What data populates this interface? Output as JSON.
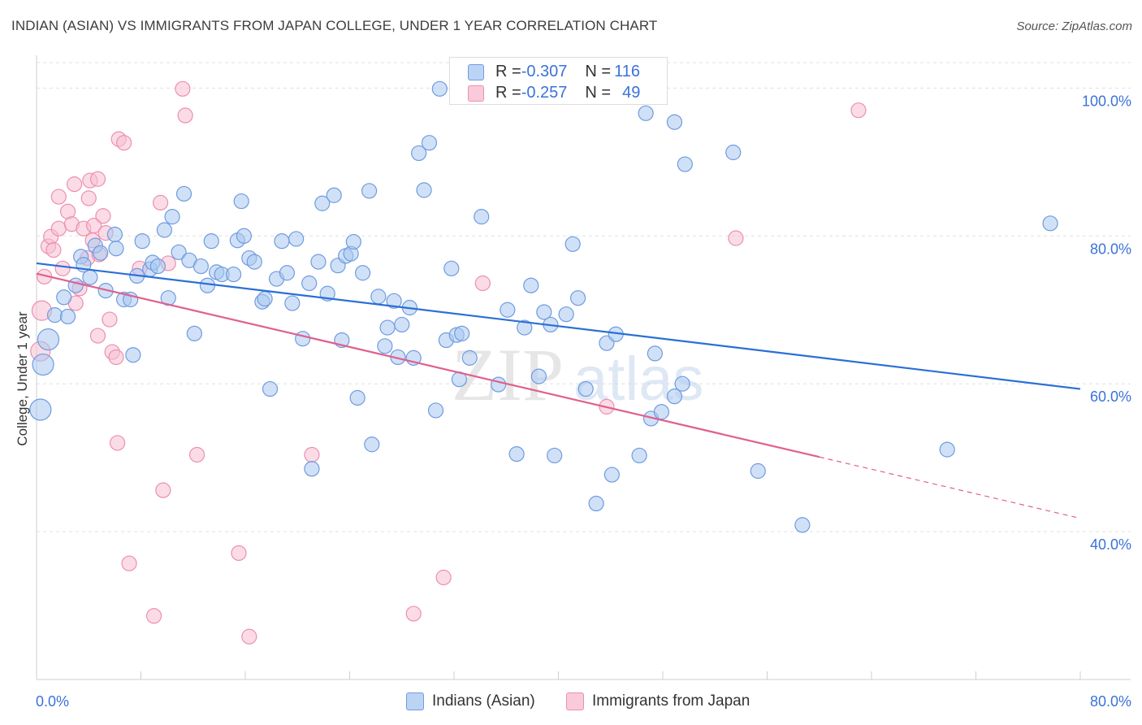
{
  "title": "INDIAN (ASIAN) VS IMMIGRANTS FROM JAPAN COLLEGE, UNDER 1 YEAR CORRELATION CHART",
  "source": "Source: ZipAtlas.com",
  "watermark": {
    "zip": "ZIP",
    "atlas": "atlas"
  },
  "colors": {
    "blue_fill": "#a9c8f0",
    "blue_stroke": "#6f9be0",
    "blue_line": "#2a6fd6",
    "pink_fill": "#f7bfd1",
    "pink_stroke": "#ec8fae",
    "pink_line": "#e0608e",
    "axis_label": "#3b72d9",
    "grid": "#e0e0e0"
  },
  "stats": {
    "row1": {
      "r_label": "R = ",
      "r_value": "-0.307",
      "n_label": "N = ",
      "n_value": "116"
    },
    "row2": {
      "r_label": "R = ",
      "r_value": "-0.257",
      "n_label": "N = ",
      "n_value": "49"
    }
  },
  "legend": {
    "series1": "Indians (Asian)",
    "series2": "Immigrants from Japan"
  },
  "chart_data": {
    "type": "scatter",
    "title": "INDIAN (ASIAN) VS IMMIGRANTS FROM JAPAN COLLEGE, UNDER 1 YEAR CORRELATION CHART",
    "xlabel": "",
    "ylabel": "College, Under 1 year",
    "xlim": [
      0,
      80
    ],
    "ylim": [
      20,
      104
    ],
    "x_tick_labels": [
      "0.0%",
      "80.0%"
    ],
    "y_ticks": [
      {
        "value": 40,
        "label": "40.0%"
      },
      {
        "value": 60,
        "label": "60.0%"
      },
      {
        "value": 80,
        "label": "80.0%"
      },
      {
        "value": 100,
        "label": "100.0%"
      }
    ],
    "grid": true,
    "legend_position": "bottom-center",
    "series": [
      {
        "name": "Indians (Asian)",
        "color": "#a9c8f0",
        "trend": {
          "x": [
            0,
            80
          ],
          "y": [
            76.3,
            59.3
          ]
        },
        "points": [
          [
            0.3,
            56.5
          ],
          [
            0.5,
            62.6
          ],
          [
            0.9,
            66.0
          ],
          [
            1.4,
            69.3
          ],
          [
            2.4,
            69.1
          ],
          [
            2.1,
            71.7
          ],
          [
            3.4,
            77.2
          ],
          [
            3.6,
            76.1
          ],
          [
            3.0,
            73.3
          ],
          [
            4.1,
            74.4
          ],
          [
            4.5,
            78.7
          ],
          [
            4.9,
            77.7
          ],
          [
            5.3,
            72.6
          ],
          [
            6.0,
            80.2
          ],
          [
            6.1,
            78.3
          ],
          [
            6.7,
            71.4
          ],
          [
            7.2,
            71.4
          ],
          [
            7.4,
            63.9
          ],
          [
            7.7,
            74.6
          ],
          [
            8.1,
            79.3
          ],
          [
            8.7,
            75.5
          ],
          [
            8.9,
            76.4
          ],
          [
            9.3,
            75.9
          ],
          [
            9.8,
            80.8
          ],
          [
            10.1,
            71.6
          ],
          [
            10.4,
            82.6
          ],
          [
            10.9,
            77.8
          ],
          [
            11.3,
            85.7
          ],
          [
            11.7,
            76.7
          ],
          [
            12.1,
            66.8
          ],
          [
            12.6,
            75.9
          ],
          [
            13.1,
            73.3
          ],
          [
            13.4,
            79.3
          ],
          [
            13.8,
            75.1
          ],
          [
            14.2,
            74.8
          ],
          [
            15.1,
            74.8
          ],
          [
            15.4,
            79.4
          ],
          [
            15.7,
            84.7
          ],
          [
            15.9,
            80.0
          ],
          [
            16.3,
            77.0
          ],
          [
            16.7,
            76.5
          ],
          [
            17.3,
            71.1
          ],
          [
            17.5,
            71.5
          ],
          [
            17.9,
            59.3
          ],
          [
            18.4,
            74.2
          ],
          [
            18.8,
            79.3
          ],
          [
            19.2,
            75.0
          ],
          [
            19.6,
            70.9
          ],
          [
            19.9,
            79.6
          ],
          [
            20.4,
            66.1
          ],
          [
            20.9,
            73.6
          ],
          [
            21.1,
            48.5
          ],
          [
            21.6,
            76.5
          ],
          [
            21.9,
            84.4
          ],
          [
            22.3,
            72.2
          ],
          [
            22.8,
            85.5
          ],
          [
            23.1,
            76.0
          ],
          [
            23.4,
            65.9
          ],
          [
            23.7,
            77.3
          ],
          [
            24.1,
            77.6
          ],
          [
            24.3,
            79.2
          ],
          [
            24.6,
            58.1
          ],
          [
            25.0,
            75.0
          ],
          [
            25.5,
            86.1
          ],
          [
            25.7,
            51.8
          ],
          [
            26.2,
            71.8
          ],
          [
            26.7,
            65.1
          ],
          [
            26.9,
            67.6
          ],
          [
            27.4,
            71.2
          ],
          [
            27.7,
            63.6
          ],
          [
            28.0,
            68.0
          ],
          [
            28.6,
            70.3
          ],
          [
            28.9,
            63.5
          ],
          [
            29.3,
            91.2
          ],
          [
            29.7,
            86.2
          ],
          [
            30.1,
            92.6
          ],
          [
            30.6,
            56.4
          ],
          [
            30.9,
            99.9
          ],
          [
            31.4,
            65.9
          ],
          [
            31.8,
            75.6
          ],
          [
            32.2,
            66.6
          ],
          [
            32.6,
            66.8
          ],
          [
            33.2,
            63.5
          ],
          [
            34.1,
            82.6
          ],
          [
            35.4,
            59.9
          ],
          [
            36.1,
            70.0
          ],
          [
            36.8,
            50.5
          ],
          [
            37.4,
            67.6
          ],
          [
            37.9,
            73.3
          ],
          [
            38.5,
            61.0
          ],
          [
            38.9,
            69.7
          ],
          [
            39.4,
            68.0
          ],
          [
            39.7,
            50.3
          ],
          [
            40.6,
            69.4
          ],
          [
            41.1,
            78.9
          ],
          [
            41.5,
            71.6
          ],
          [
            42.1,
            59.3
          ],
          [
            42.9,
            43.8
          ],
          [
            43.7,
            65.5
          ],
          [
            44.1,
            47.7
          ],
          [
            44.4,
            66.7
          ],
          [
            46.2,
            50.3
          ],
          [
            47.1,
            55.3
          ],
          [
            47.4,
            64.1
          ],
          [
            47.9,
            56.2
          ],
          [
            48.9,
            58.3
          ],
          [
            49.5,
            60.0
          ],
          [
            49.7,
            89.7
          ],
          [
            53.4,
            91.3
          ],
          [
            55.3,
            48.2
          ],
          [
            58.7,
            40.9
          ],
          [
            69.8,
            51.1
          ],
          [
            77.7,
            81.7
          ],
          [
            46.7,
            96.6
          ],
          [
            48.9,
            95.4
          ],
          [
            32.4,
            60.6
          ]
        ]
      },
      {
        "name": "Immigrants from Japan",
        "color": "#f7bfd1",
        "trend": {
          "x": [
            0,
            60
          ],
          "y": [
            74.9,
            50.1
          ]
        },
        "trend_dashed": {
          "x": [
            60,
            80
          ],
          "y": [
            50.1,
            41.8
          ]
        },
        "points": [
          [
            0.3,
            64.4
          ],
          [
            0.4,
            69.9
          ],
          [
            0.6,
            74.5
          ],
          [
            0.9,
            78.6
          ],
          [
            1.1,
            79.9
          ],
          [
            1.3,
            78.1
          ],
          [
            1.7,
            81.0
          ],
          [
            1.7,
            85.3
          ],
          [
            2.0,
            75.6
          ],
          [
            2.4,
            83.3
          ],
          [
            2.7,
            81.6
          ],
          [
            2.9,
            87.0
          ],
          [
            3.0,
            70.9
          ],
          [
            3.3,
            72.9
          ],
          [
            3.6,
            81.0
          ],
          [
            3.9,
            77.0
          ],
          [
            4.0,
            85.1
          ],
          [
            4.1,
            87.5
          ],
          [
            4.3,
            79.4
          ],
          [
            4.4,
            81.4
          ],
          [
            4.7,
            87.7
          ],
          [
            4.7,
            66.5
          ],
          [
            4.8,
            77.5
          ],
          [
            5.1,
            82.7
          ],
          [
            5.3,
            80.4
          ],
          [
            5.6,
            68.7
          ],
          [
            5.8,
            64.3
          ],
          [
            6.1,
            63.6
          ],
          [
            6.2,
            52.0
          ],
          [
            6.3,
            93.1
          ],
          [
            6.7,
            92.6
          ],
          [
            7.1,
            35.7
          ],
          [
            7.9,
            75.6
          ],
          [
            9.5,
            84.5
          ],
          [
            9.0,
            28.6
          ],
          [
            9.7,
            45.6
          ],
          [
            10.1,
            76.3
          ],
          [
            11.2,
            99.9
          ],
          [
            11.4,
            96.3
          ],
          [
            12.3,
            50.4
          ],
          [
            15.5,
            37.1
          ],
          [
            16.3,
            25.8
          ],
          [
            21.1,
            50.4
          ],
          [
            28.9,
            28.9
          ],
          [
            31.2,
            33.8
          ],
          [
            34.2,
            73.6
          ],
          [
            43.7,
            56.9
          ],
          [
            53.6,
            79.7
          ],
          [
            63.0,
            97.0
          ]
        ]
      }
    ]
  }
}
